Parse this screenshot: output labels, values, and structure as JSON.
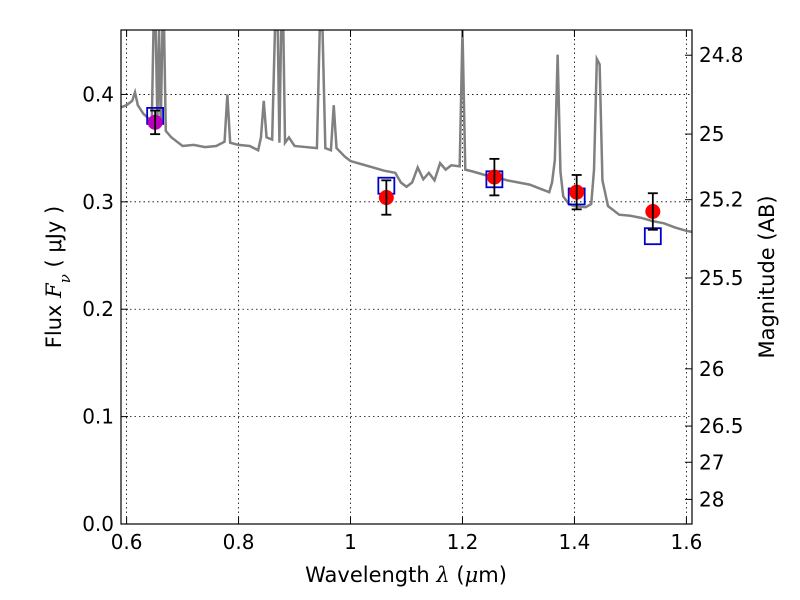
{
  "chart_data": {
    "type": "scatter",
    "xlabel_prefix": "Wavelength",
    "xlabel_symbol": "λ",
    "xlabel_unit_open": "(",
    "xlabel_unit_mu": "μ",
    "xlabel_unit_rest": "m)",
    "ylabel_prefix": "Flux",
    "ylabel_symbol": "F",
    "ylabel_subscript": "ν",
    "ylabel_unit": "( μJy )",
    "y2label": "Magnitude (AB)",
    "xlim": [
      0.59,
      1.61
    ],
    "ylim": [
      0.0,
      0.46
    ],
    "grid": true,
    "x_ticks": [
      0.6,
      0.8,
      1.0,
      1.2,
      1.4,
      1.6
    ],
    "x_tick_labels": [
      "0.6",
      "0.8",
      "1",
      "1.2",
      "1.4",
      "1.6"
    ],
    "y_ticks": [
      0.0,
      0.1,
      0.2,
      0.3,
      0.4
    ],
    "y_tick_labels": [
      "0.0",
      "0.1",
      "0.2",
      "0.3",
      "0.4"
    ],
    "y2_ticks": [
      {
        "label": "24.8",
        "flux": 0.4365
      },
      {
        "label": "25",
        "flux": 0.3631
      },
      {
        "label": "25.2",
        "flux": 0.302
      },
      {
        "label": "25.5",
        "flux": 0.2291
      },
      {
        "label": "26",
        "flux": 0.1445
      },
      {
        "label": "26.5",
        "flux": 0.0912
      },
      {
        "label": "27",
        "flux": 0.0575
      },
      {
        "label": "28",
        "flux": 0.0229
      }
    ],
    "series": [
      {
        "kind": "line",
        "color": "#808080",
        "points": [
          [
            0.59,
            0.388
          ],
          [
            0.6,
            0.39
          ],
          [
            0.61,
            0.394
          ],
          [
            0.615,
            0.402
          ],
          [
            0.62,
            0.39
          ],
          [
            0.63,
            0.382
          ],
          [
            0.645,
            0.375
          ],
          [
            0.648,
            0.46
          ],
          [
            0.652,
            0.46
          ],
          [
            0.655,
            0.375
          ],
          [
            0.658,
            0.46
          ],
          [
            0.661,
            0.372
          ],
          [
            0.664,
            0.46
          ],
          [
            0.667,
            0.46
          ],
          [
            0.67,
            0.366
          ],
          [
            0.68,
            0.36
          ],
          [
            0.69,
            0.356
          ],
          [
            0.7,
            0.352
          ],
          [
            0.72,
            0.353
          ],
          [
            0.74,
            0.351
          ],
          [
            0.76,
            0.352
          ],
          [
            0.775,
            0.356
          ],
          [
            0.78,
            0.4
          ],
          [
            0.785,
            0.355
          ],
          [
            0.8,
            0.353
          ],
          [
            0.82,
            0.352
          ],
          [
            0.835,
            0.348
          ],
          [
            0.84,
            0.36
          ],
          [
            0.845,
            0.394
          ],
          [
            0.85,
            0.36
          ],
          [
            0.86,
            0.358
          ],
          [
            0.865,
            0.46
          ],
          [
            0.87,
            0.46
          ],
          [
            0.873,
            0.355
          ],
          [
            0.876,
            0.46
          ],
          [
            0.88,
            0.46
          ],
          [
            0.883,
            0.355
          ],
          [
            0.89,
            0.36
          ],
          [
            0.9,
            0.352
          ],
          [
            0.92,
            0.351
          ],
          [
            0.94,
            0.35
          ],
          [
            0.945,
            0.46
          ],
          [
            0.95,
            0.46
          ],
          [
            0.955,
            0.35
          ],
          [
            0.965,
            0.348
          ],
          [
            0.97,
            0.39
          ],
          [
            0.975,
            0.35
          ],
          [
            0.99,
            0.342
          ],
          [
            1.0,
            0.338
          ],
          [
            1.02,
            0.335
          ],
          [
            1.04,
            0.332
          ],
          [
            1.06,
            0.329
          ],
          [
            1.08,
            0.327
          ],
          [
            1.09,
            0.318
          ],
          [
            1.1,
            0.314
          ],
          [
            1.11,
            0.318
          ],
          [
            1.12,
            0.332
          ],
          [
            1.13,
            0.321
          ],
          [
            1.14,
            0.327
          ],
          [
            1.15,
            0.32
          ],
          [
            1.16,
            0.336
          ],
          [
            1.17,
            0.33
          ],
          [
            1.18,
            0.334
          ],
          [
            1.195,
            0.333
          ],
          [
            1.2,
            0.46
          ],
          [
            1.205,
            0.33
          ],
          [
            1.22,
            0.328
          ],
          [
            1.24,
            0.325
          ],
          [
            1.26,
            0.323
          ],
          [
            1.28,
            0.32
          ],
          [
            1.3,
            0.318
          ],
          [
            1.32,
            0.316
          ],
          [
            1.34,
            0.312
          ],
          [
            1.355,
            0.309
          ],
          [
            1.36,
            0.318
          ],
          [
            1.365,
            0.339
          ],
          [
            1.37,
            0.437
          ],
          [
            1.375,
            0.328
          ],
          [
            1.38,
            0.305
          ],
          [
            1.39,
            0.298
          ],
          [
            1.4,
            0.296
          ],
          [
            1.42,
            0.295
          ],
          [
            1.43,
            0.298
          ],
          [
            1.435,
            0.33
          ],
          [
            1.44,
            0.433
          ],
          [
            1.445,
            0.428
          ],
          [
            1.45,
            0.32
          ],
          [
            1.46,
            0.296
          ],
          [
            1.48,
            0.288
          ],
          [
            1.5,
            0.287
          ],
          [
            1.52,
            0.285
          ],
          [
            1.54,
            0.282
          ],
          [
            1.56,
            0.28
          ],
          [
            1.58,
            0.276
          ],
          [
            1.6,
            0.273
          ],
          [
            1.61,
            0.272
          ]
        ]
      },
      {
        "kind": "model",
        "marker": "open-square",
        "color": "#0000cc",
        "x": [
          0.651,
          1.064,
          1.257,
          1.404,
          1.54
        ],
        "y": [
          0.38,
          0.315,
          0.321,
          0.305,
          0.268
        ]
      },
      {
        "kind": "observed",
        "marker": "filled-circle",
        "color": "#ff0000",
        "highlight_color": "#bb00bb",
        "x": [
          0.651,
          1.064,
          1.257,
          1.404,
          1.54
        ],
        "y": [
          0.374,
          0.304,
          0.323,
          0.309,
          0.291
        ],
        "yerr": [
          0.011,
          0.016,
          0.017,
          0.016,
          0.017
        ]
      }
    ]
  }
}
